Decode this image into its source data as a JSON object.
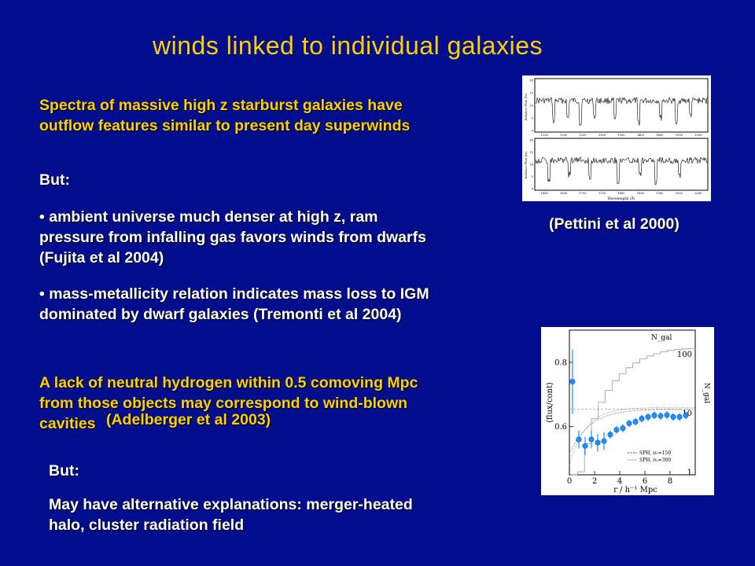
{
  "slide": {
    "title": "winds linked to individual galaxies",
    "spectra_text_line1": "Spectra of massive high z starburst galaxies have",
    "spectra_text_line2": "outflow features  similar to present day superwinds",
    "but1": "But:",
    "bullet1_line1": "• ambient universe much denser at high z, ram",
    "bullet1_line2": "pressure from infalling gas favors winds from dwarfs",
    "bullet1_line3": "(Fujita et al 2004)",
    "bullet2_line1": "• mass-metallicity relation indicates mass loss to IGM",
    "bullet2_line2": "dominated by dwarf galaxies (Tremonti et al 2004)",
    "lack_line1": "A lack of neutral hydrogen within 0.5 comoving Mpc",
    "lack_line2": "from those objects may correspond to  wind-blown",
    "lack_line3": "cavities",
    "lack_citation": "(Adelberger et al 2003)",
    "but2": "But:",
    "alt_line1": "May have alternative explanations: merger-heated",
    "alt_line2": "halo, cluster radiation field",
    "pettini_citation": "(Pettini et al 2000)"
  },
  "spectrum_figure": {
    "top_ylabel": "Relative Flux (fν)",
    "bottom_ylabel": "Relative Flux (fν)",
    "xlabel": "Wavelength (Å)",
    "top_yticks": [
      "20",
      "15",
      "10",
      "5",
      "0"
    ],
    "bottom_yticks": [
      "20",
      "15",
      "10",
      "5",
      "0"
    ],
    "top_xticks": [
      "1150",
      "1200",
      "1250",
      "1300",
      "1350",
      "1400",
      "1450",
      "1500",
      "1550"
    ],
    "bottom_xticks": [
      "1600",
      "1650",
      "1700",
      "1750",
      "1800",
      "1850",
      "1900",
      "1950",
      "2000"
    ]
  },
  "chart_data": {
    "type": "scatter",
    "title": "",
    "xlabel": "r / h⁻¹ Mpc",
    "ylabel": "⟨flux/cont⟩",
    "y2label": "N_gal",
    "xlim": [
      0,
      10
    ],
    "ylim": [
      0.45,
      0.9
    ],
    "xticks": [
      "0",
      "2",
      "4",
      "6",
      "8"
    ],
    "yticks": [
      "0.8",
      "0.6"
    ],
    "y2ticks": [
      "100",
      "10",
      "1"
    ],
    "curve_label": "N_gal",
    "legend": [
      "SPH, σ₀=150",
      "SPH, σ₀=300"
    ],
    "legend_position": "bottom-right",
    "series": [
      {
        "name": "",
        "points": [
          {
            "x": 0.25,
            "y": 0.74
          },
          {
            "x": 0.75,
            "y": 0.56
          },
          {
            "x": 1.25,
            "y": 0.54
          },
          {
            "x": 1.75,
            "y": 0.56
          },
          {
            "x": 2.25,
            "y": 0.55
          },
          {
            "x": 2.75,
            "y": 0.555
          },
          {
            "x": 3.25,
            "y": 0.575
          },
          {
            "x": 3.75,
            "y": 0.59
          },
          {
            "x": 4.25,
            "y": 0.595
          },
          {
            "x": 4.75,
            "y": 0.61
          },
          {
            "x": 5.25,
            "y": 0.615
          },
          {
            "x": 5.75,
            "y": 0.625
          },
          {
            "x": 6.25,
            "y": 0.63
          },
          {
            "x": 6.75,
            "y": 0.635
          },
          {
            "x": 7.25,
            "y": 0.633
          },
          {
            "x": 7.75,
            "y": 0.636
          },
          {
            "x": 8.25,
            "y": 0.63
          },
          {
            "x": 8.75,
            "y": 0.63
          },
          {
            "x": 9.25,
            "y": 0.635
          }
        ]
      }
    ]
  },
  "colors": {
    "background": "#000d8c",
    "title": "#ffd000",
    "body_text": "#ffffff",
    "points": "#1e90ff"
  }
}
